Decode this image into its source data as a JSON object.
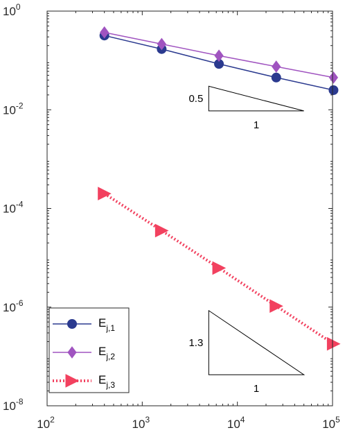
{
  "chart_data": {
    "type": "line",
    "xscale": "log",
    "yscale": "log",
    "xlim": [
      100,
      100000
    ],
    "ylim": [
      1e-08,
      1
    ],
    "grid": false,
    "legend_position": "bottom-left",
    "x_ticks": [
      {
        "base": "10",
        "exp": "2",
        "value": 100
      },
      {
        "base": "10",
        "exp": "3",
        "value": 1000
      },
      {
        "base": "10",
        "exp": "4",
        "value": 10000
      },
      {
        "base": "10",
        "exp": "5",
        "value": 100000
      }
    ],
    "y_ticks": [
      {
        "base": "10",
        "exp": "0",
        "value": 1
      },
      {
        "base": "10",
        "exp": "-2",
        "value": 0.01
      },
      {
        "base": "10",
        "exp": "-4",
        "value": 0.0001
      },
      {
        "base": "10",
        "exp": "-6",
        "value": 1e-06
      },
      {
        "base": "10",
        "exp": "-8",
        "value": 1e-08
      }
    ],
    "x": [
      400,
      1600,
      6400,
      25600,
      102400
    ],
    "series": [
      {
        "name": "E",
        "sub": "j,1",
        "marker": "circle",
        "line": "solid",
        "color": "#2b3a8f",
        "values": [
          0.32,
          0.17,
          0.085,
          0.045,
          0.025
        ]
      },
      {
        "name": "E",
        "sub": "j,2",
        "marker": "diamond",
        "line": "solid",
        "color": "#a054c0",
        "values": [
          0.37,
          0.215,
          0.125,
          0.075,
          0.045
        ]
      },
      {
        "name": "E",
        "sub": "j,3",
        "marker": "triangle-right",
        "line": "dotted",
        "color": "#f2415f",
        "values": [
          0.0002,
          3.55e-05,
          6.2e-06,
          1.05e-06,
          1.8e-07
        ]
      }
    ],
    "slope_triangles": [
      {
        "slope_label": "0.5",
        "run_label": "1",
        "x_start": 5000,
        "x_end": 50000,
        "y_top": 0.03,
        "slope": 0.5
      },
      {
        "slope_label": "1.3",
        "run_label": "1",
        "x_start": 5000,
        "x_end": 50000,
        "y_top": 8.5e-07,
        "slope": 1.3
      }
    ]
  }
}
